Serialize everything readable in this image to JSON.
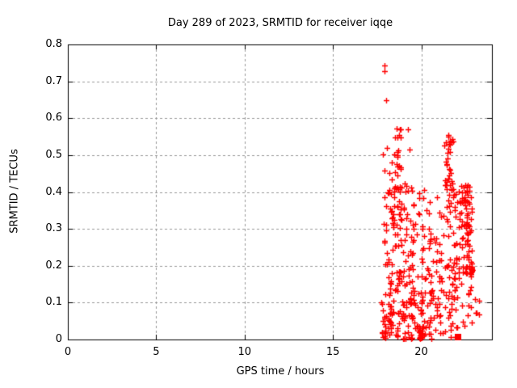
{
  "page": {
    "background": "#ffffff"
  },
  "chart_data": {
    "type": "scatter",
    "title": "Day 289 of 2023, SRMTID for receiver iqqe",
    "xlabel": "GPS time / hours",
    "ylabel": "SRMTID / TECUs",
    "xlim": [
      0,
      24
    ],
    "ylim": [
      0,
      0.8
    ],
    "xticks": {
      "values": [
        0,
        5,
        10,
        15,
        20
      ],
      "labels": [
        "0",
        "5",
        "10",
        "15",
        "20"
      ]
    },
    "yticks": {
      "values": [
        0,
        0.1,
        0.2,
        0.3,
        0.4,
        0.5,
        0.6,
        0.7,
        0.8
      ],
      "labels": [
        "0",
        "0.1",
        "0.2",
        "0.3",
        "0.4",
        "0.5",
        "0.6",
        "0.7",
        "0.8"
      ]
    },
    "grid": {
      "show": true,
      "color": "#999999",
      "dash": [
        3,
        3
      ]
    },
    "border_color": "#000000",
    "legend": "none",
    "marker": {
      "shape": "plus",
      "color": "#ff0000",
      "size": 7,
      "stroke": 1.4
    },
    "series": [
      {
        "name": "SRMTID",
        "color": "#ff0000",
        "seed": 2023289,
        "data_extent": {
          "x_min": 17.7,
          "x_max": 23.3,
          "y_min": 0,
          "y_max": 0.745
        },
        "outlier_points": [
          [
            17.93,
            0.742
          ],
          [
            17.93,
            0.727
          ],
          [
            18.0,
            0.649
          ],
          [
            18.05,
            0.519
          ],
          [
            17.85,
            0.502
          ],
          [
            23.28,
            0.106
          ]
        ],
        "dense_square_points": [
          [
            22.1,
            0.006
          ]
        ],
        "clusters": [
          {
            "n": 30,
            "x": {
              "type": "normal",
              "mean": 18.7,
              "sd": 0.28
            },
            "y": {
              "type": "uniform",
              "min": 0.4,
              "max": 0.575
            }
          },
          {
            "n": 32,
            "x": {
              "type": "normal",
              "mean": 21.55,
              "sd": 0.13
            },
            "y": {
              "type": "uniform",
              "min": 0.385,
              "max": 0.555
            }
          },
          {
            "n": 85,
            "x": {
              "type": "uniform",
              "min": 17.85,
              "max": 19.6
            },
            "y": {
              "type": "uniform",
              "min": 0.18,
              "max": 0.425
            }
          },
          {
            "n": 75,
            "x": {
              "type": "uniform",
              "min": 19.6,
              "max": 21.85
            },
            "y": {
              "type": "uniform",
              "min": 0.15,
              "max": 0.42
            }
          },
          {
            "n": 70,
            "x": {
              "type": "uniform",
              "min": 21.85,
              "max": 22.88
            },
            "y": {
              "type": "uniform",
              "min": 0.16,
              "max": 0.42
            }
          },
          {
            "n": 25,
            "x": {
              "type": "normal",
              "mean": 22.6,
              "sd": 0.07
            },
            "y": {
              "type": "uniform",
              "min": 0.19,
              "max": 0.41
            }
          },
          {
            "n": 150,
            "x": {
              "type": "uniform",
              "min": 17.75,
              "max": 20.6
            },
            "y": {
              "type": "uniform",
              "min": 0.002,
              "max": 0.185,
              "pow": 1.4
            }
          },
          {
            "n": 45,
            "x": {
              "type": "uniform",
              "min": 20.5,
              "max": 22.05
            },
            "y": {
              "type": "uniform",
              "min": 0.002,
              "max": 0.145,
              "pow": 1.2
            }
          },
          {
            "n": 18,
            "x": {
              "type": "uniform",
              "min": 22.05,
              "max": 23.05
            },
            "y": {
              "type": "uniform",
              "min": 0.03,
              "max": 0.2
            }
          },
          {
            "n": 16,
            "x": {
              "type": "normal",
              "mean": 19.95,
              "sd": 0.07
            },
            "y": {
              "type": "uniform",
              "min": 0.002,
              "max": 0.035
            }
          },
          {
            "n": 12,
            "x": {
              "type": "normal",
              "mean": 18.2,
              "sd": 0.1
            },
            "y": {
              "type": "uniform",
              "min": 0.002,
              "max": 0.2
            }
          },
          {
            "n": 14,
            "x": {
              "type": "normal",
              "mean": 22.85,
              "sd": 0.035
            },
            "y": {
              "type": "uniform",
              "min": 0.178,
              "max": 0.212
            }
          },
          {
            "n": 4,
            "x": {
              "type": "uniform",
              "min": 23.0,
              "max": 23.3
            },
            "y": {
              "type": "uniform",
              "min": 0.05,
              "max": 0.12
            }
          }
        ]
      }
    ]
  }
}
